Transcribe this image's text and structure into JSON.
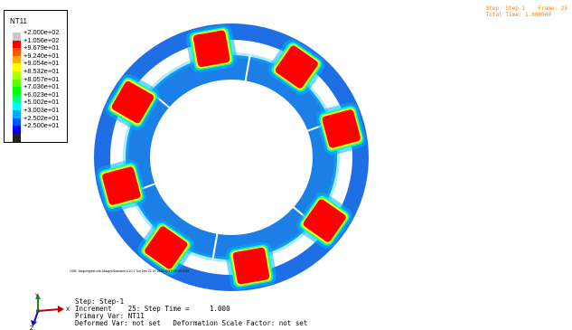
{
  "legend": {
    "title": "NT11",
    "entries": [
      {
        "label": "+2.000e+02",
        "color": "#c8c8c8"
      },
      {
        "label": "+1.056e+02",
        "color": "#ff0000"
      },
      {
        "label": "+9.679e+01",
        "color": "#ff5500"
      },
      {
        "label": "+9.240e+01",
        "color": "#ffaa00"
      },
      {
        "label": "+9.054e+01",
        "color": "#ffff00"
      },
      {
        "label": "+8.532e+01",
        "color": "#aaff00"
      },
      {
        "label": "+8.057e+01",
        "color": "#55ff00"
      },
      {
        "label": "+7.036e+01",
        "color": "#00ff00"
      },
      {
        "label": "+6.023e+01",
        "color": "#00ff80"
      },
      {
        "label": "+5.002e+01",
        "color": "#00ffff"
      },
      {
        "label": "+3.003e+01",
        "color": "#00aaff"
      },
      {
        "label": "+2.502e+01",
        "color": "#0055ff"
      },
      {
        "label": "+2.500e+01",
        "color": "#0000ff"
      },
      {
        "label": "",
        "color": "#222222"
      }
    ]
  },
  "step_info": {
    "line1": "Step: Step-1    Frame: 25",
    "line2": "Total Time: 1.000000"
  },
  "odb_line": "ODB: Jianjumgtest.odb   Abaqus/Standard 6.10-1   Tue Dec 21 19:18:05 GMT+08:00 2010",
  "info": {
    "step": "Step: Step-1",
    "increment": "Increment    25: Step Time =     1.000",
    "primary": "Primary Var: NT11",
    "deformed": "Deformed Var: not set   Deformation Scale Factor: not set"
  },
  "triad": {
    "x": "X",
    "y": "Y",
    "z": "Z"
  },
  "colors": {
    "outer_ring": "#1e6ee6",
    "inner_ring": "#1c7fe8",
    "hot": "#ff0000",
    "warm": "#ffff00",
    "mid": "#00ffb0",
    "cool": "#00b4ff"
  }
}
